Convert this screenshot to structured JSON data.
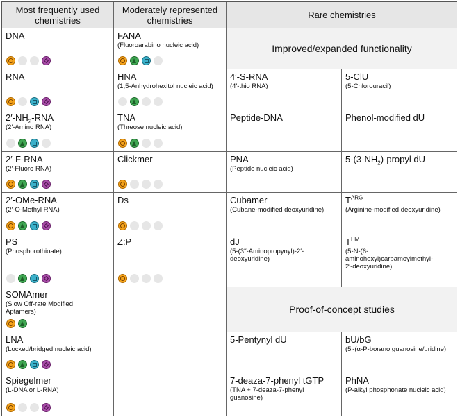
{
  "headers": {
    "col1": "Most frequently used chemistries",
    "col2": "Moderately represented chemistries",
    "col3": "Rare chemistries"
  },
  "sections": {
    "improved": "Improved/expanded functionality",
    "poc": "Proof-of-concept studies"
  },
  "frequent": [
    {
      "name": "DNA",
      "sub": "",
      "icons": [
        "orange-circle",
        "empty",
        "empty",
        "purple-diamond"
      ]
    },
    {
      "name": "RNA",
      "sub": "",
      "icons": [
        "orange-circle",
        "empty",
        "blue-square",
        "purple-diamond"
      ]
    },
    {
      "name_a": "2′-NH",
      "name_sub": "2",
      "name_b": "-RNA",
      "sub": "(2′-Amino RNA)",
      "icons": [
        "empty",
        "green-triangle",
        "blue-square",
        "empty"
      ]
    },
    {
      "name": "2′-F-RNA",
      "sub": "(2′-Fluoro RNA)",
      "icons": [
        "orange-circle",
        "green-triangle",
        "blue-square",
        "purple-diamond"
      ]
    },
    {
      "name": "2′-OMe-RNA",
      "sub": "(2′-O-Methyl RNA)",
      "icons": [
        "orange-circle",
        "green-triangle",
        "blue-square",
        "purple-diamond"
      ]
    },
    {
      "name": "PS",
      "sub": "(Phosphorothioate)",
      "icons": [
        "empty",
        "green-triangle",
        "blue-square",
        "purple-diamond"
      ]
    },
    {
      "name": "SOMAmer",
      "sub": "(Slow Off-rate Modified Aptamers)",
      "icons": [
        "orange-circle",
        "green-triangle"
      ]
    },
    {
      "name": "LNA",
      "sub": "(Locked/bridged nucleic acid)",
      "icons": [
        "orange-circle",
        "green-triangle",
        "blue-square",
        "purple-diamond"
      ]
    },
    {
      "name": "Spiegelmer",
      "sub": "(L-DNA or L-RNA)",
      "icons": [
        "orange-circle",
        "empty",
        "empty",
        "purple-diamond"
      ]
    }
  ],
  "moderate": [
    {
      "name": "FANA",
      "sub": "(Fluoroarabino nucleic acid)",
      "icons": [
        "orange-circle",
        "green-triangle",
        "blue-square",
        "empty"
      ]
    },
    {
      "name": "HNA",
      "sub": "(1,5-Anhydrohexitol nucleic acid)",
      "icons": [
        "empty",
        "green-triangle",
        "empty",
        "empty"
      ]
    },
    {
      "name": "TNA",
      "sub": "(Threose nucleic acid)",
      "icons": [
        "orange-circle",
        "green-triangle",
        "empty",
        "empty"
      ]
    },
    {
      "name": "Clickmer",
      "sub": "",
      "icons": [
        "orange-circle",
        "empty",
        "empty",
        "empty"
      ]
    },
    {
      "name": "Ds",
      "sub": "",
      "icons": [
        "orange-circle",
        "empty",
        "empty",
        "empty"
      ]
    },
    {
      "name": "Z:P",
      "sub": "",
      "icons": [
        "orange-circle",
        "empty",
        "empty",
        "empty"
      ]
    }
  ],
  "rare_improved": [
    {
      "name": "4′-S-RNA",
      "sub": "(4′-thio RNA)"
    },
    {
      "name": "5-ClU",
      "sub": "(5-Chlorouracil)"
    },
    {
      "name": "Peptide-DNA",
      "sub": ""
    },
    {
      "name": "Phenol-modified dU",
      "sub": ""
    },
    {
      "name": "PNA",
      "sub": "(Peptide nucleic acid)"
    },
    {
      "name_a": "5-(3-NH",
      "name_sub": "2",
      "name_b": ")-propyl dU",
      "sub": ""
    },
    {
      "name": "Cubamer",
      "sub": "(Cubane-modified deoxyuridine)"
    },
    {
      "name_a": "T",
      "name_sup": "ARG",
      "sub": "(Arginine-modified deoxyuridine)"
    },
    {
      "name": "dJ",
      "sub": "(5-(3′′-Aminopropynyl)-2′-deoxyuridine)"
    },
    {
      "name_a": "T",
      "name_sup": "HM",
      "sub": "(5-N-(6-aminohexyl)carbamoylmethyl-2′-deoxyuridine)"
    }
  ],
  "rare_poc": [
    {
      "name": "5-Pentynyl dU",
      "sub": ""
    },
    {
      "name": "bU/bG",
      "sub": "(5′-(α-P-borano guanosine/uridine)"
    },
    {
      "name": "7-deaza-7-phenyl tGTP",
      "sub": "(TNA + 7-deaza-7-phenyl guanosine)"
    },
    {
      "name": "PhNA",
      "sub": "(P-alkyl phosphonate nucleic acid)"
    }
  ]
}
